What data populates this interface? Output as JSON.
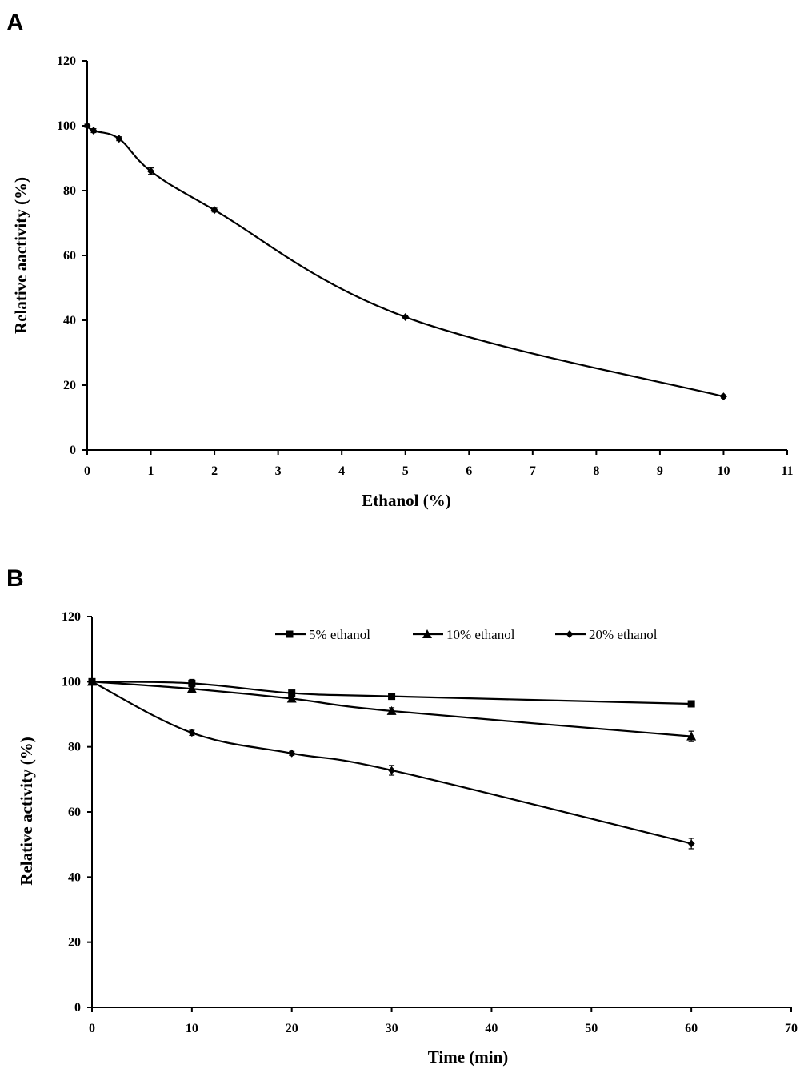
{
  "chart_data": [
    {
      "panel": "A",
      "type": "line",
      "xlabel": "Ethanol (%)",
      "ylabel": "Relative aactivity (%)",
      "xlim": [
        0,
        11
      ],
      "ylim": [
        0,
        120
      ],
      "xticks": [
        0,
        1,
        2,
        3,
        4,
        5,
        6,
        7,
        8,
        9,
        10,
        11
      ],
      "yticks": [
        0,
        20,
        40,
        60,
        80,
        100,
        120
      ],
      "series": [
        {
          "name": "Ethanol",
          "marker": "diamond",
          "x": [
            0,
            0.1,
            0.5,
            1,
            2,
            5,
            10
          ],
          "y": [
            100,
            98.5,
            96,
            86,
            74,
            41,
            16.5
          ],
          "err": [
            0.5,
            0.6,
            0.6,
            1.0,
            0.6,
            0.5,
            0.5
          ]
        }
      ]
    },
    {
      "panel": "B",
      "type": "line",
      "xlabel": "Time (min)",
      "ylabel": "Relative activity (%)",
      "xlim": [
        0,
        70
      ],
      "ylim": [
        0,
        120
      ],
      "xticks": [
        0,
        10,
        20,
        30,
        40,
        50,
        60,
        70
      ],
      "yticks": [
        0,
        20,
        40,
        60,
        80,
        100,
        120
      ],
      "legend_position": "top",
      "series": [
        {
          "name": "5% ethanol",
          "marker": "square",
          "x": [
            0,
            10,
            20,
            30,
            60
          ],
          "y": [
            100,
            99.5,
            96.5,
            95.5,
            93.2
          ],
          "err": [
            0.5,
            1.2,
            0.6,
            0.5,
            0.5
          ]
        },
        {
          "name": "10% ethanol",
          "marker": "triangle",
          "x": [
            0,
            10,
            20,
            30,
            60
          ],
          "y": [
            100,
            97.8,
            94.8,
            91,
            83.2
          ],
          "err": [
            0.5,
            0.8,
            0.8,
            1.0,
            1.6
          ]
        },
        {
          "name": "20% ethanol",
          "marker": "diamond",
          "x": [
            0,
            10,
            20,
            30,
            60
          ],
          "y": [
            100,
            84.3,
            78,
            72.8,
            50.3
          ],
          "err": [
            0.5,
            0.8,
            0.6,
            1.5,
            1.6
          ]
        }
      ]
    }
  ]
}
